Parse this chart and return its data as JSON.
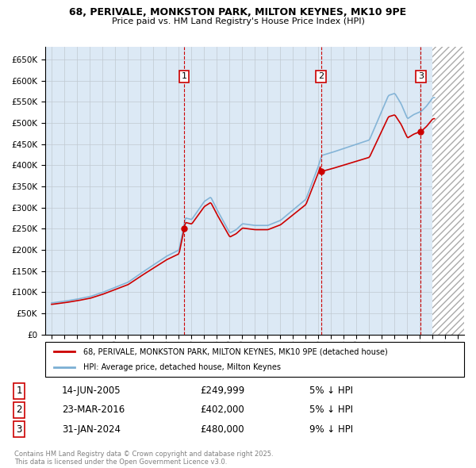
{
  "title_line1": "68, PERIVALE, MONKSTON PARK, MILTON KEYNES, MK10 9PE",
  "title_line2": "Price paid vs. HM Land Registry's House Price Index (HPI)",
  "legend_label_red": "68, PERIVALE, MONKSTON PARK, MILTON KEYNES, MK10 9PE (detached house)",
  "legend_label_blue": "HPI: Average price, detached house, Milton Keynes",
  "footer_line1": "Contains HM Land Registry data © Crown copyright and database right 2025.",
  "footer_line2": "This data is licensed under the Open Government Licence v3.0.",
  "sales": [
    {
      "num": 1,
      "date": "14-JUN-2005",
      "price": "£249,999",
      "pct": "5% ↓ HPI",
      "year": 2005.45
    },
    {
      "num": 2,
      "date": "23-MAR-2016",
      "price": "£402,000",
      "pct": "5% ↓ HPI",
      "year": 2016.23
    },
    {
      "num": 3,
      "date": "31-JAN-2024",
      "price": "£480,000",
      "pct": "9% ↓ HPI",
      "year": 2024.08
    }
  ],
  "hpi_color": "#7bafd4",
  "price_color": "#cc0000",
  "bg_color": "#dce9f5",
  "grid_color": "#c0c8d0",
  "sale_marker_color": "#cc0000",
  "ylim": [
    0,
    680000
  ],
  "xlim_start": 1994.5,
  "xlim_end": 2027.5,
  "future_start": 2025.0
}
